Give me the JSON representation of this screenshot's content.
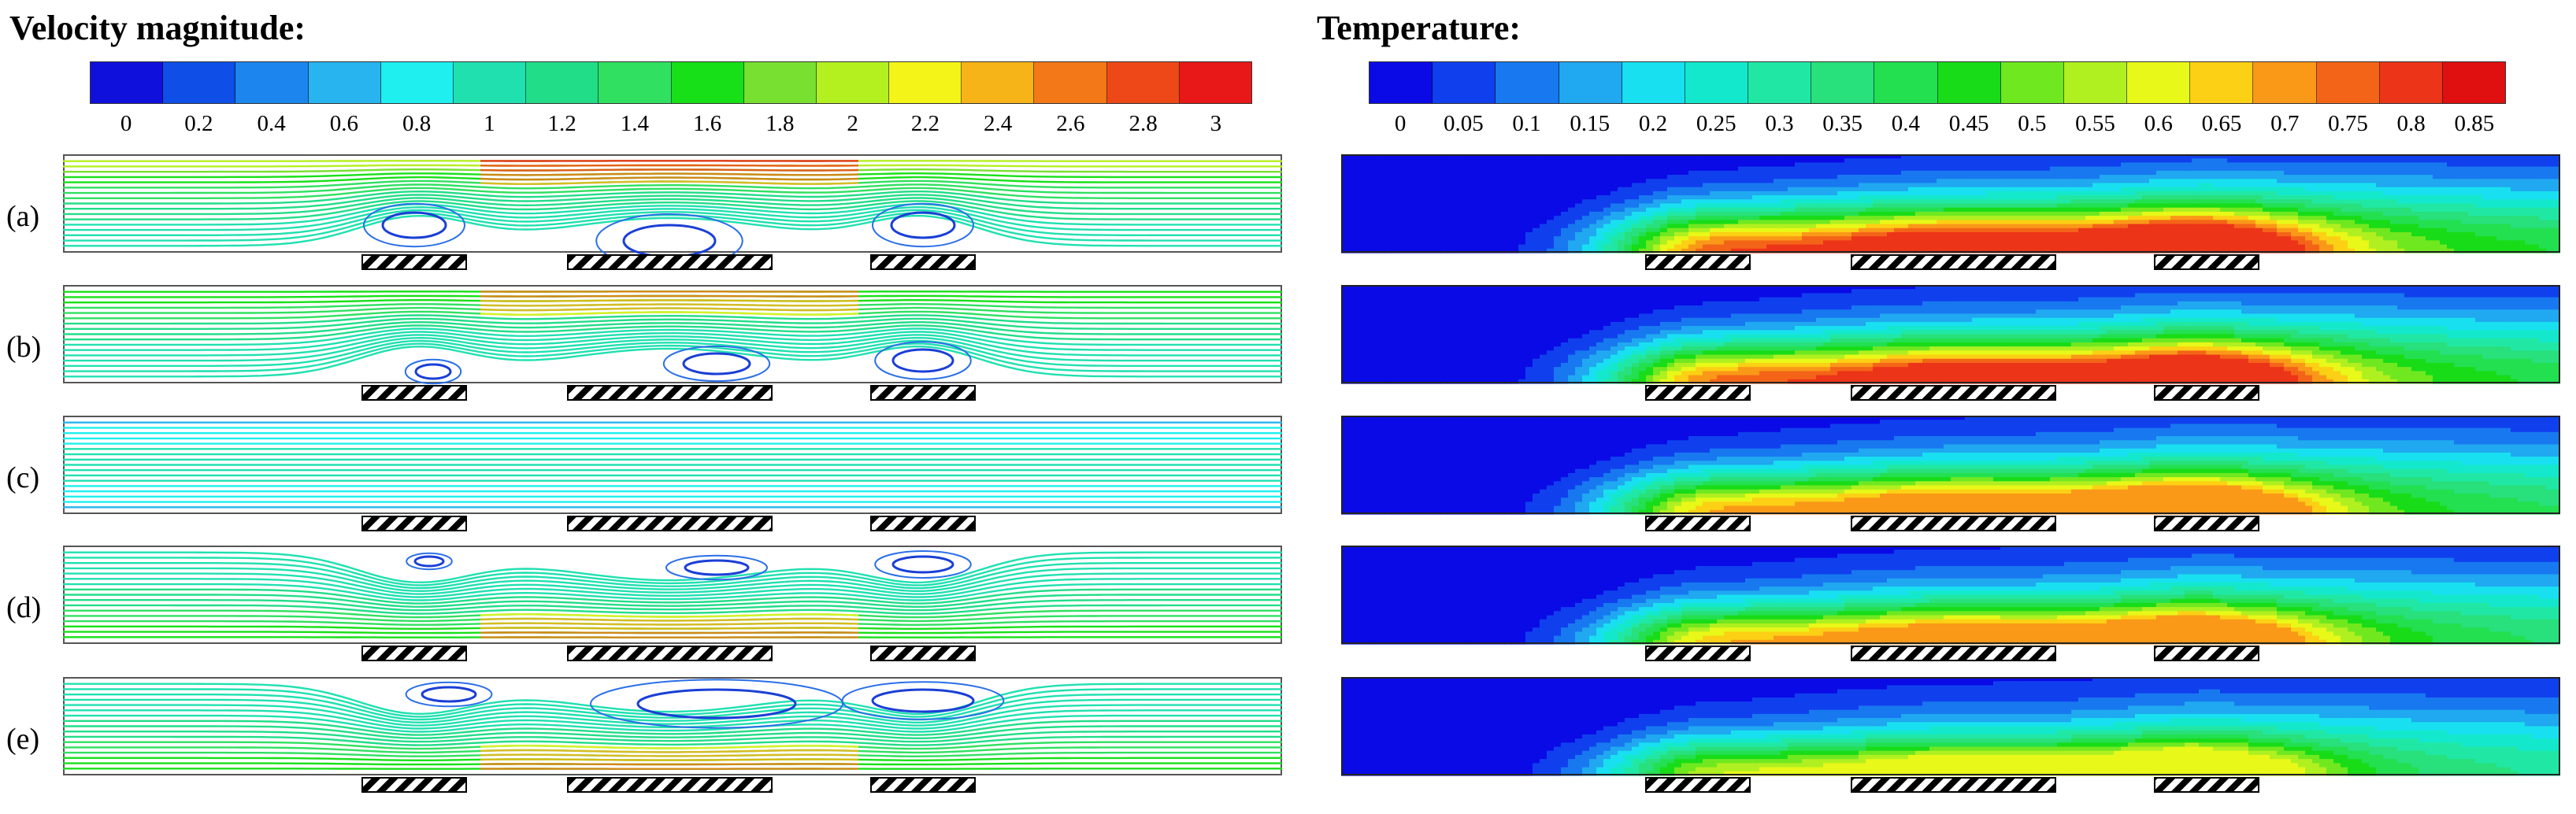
{
  "titles": {
    "velocity": "Velocity magnitude:",
    "temperature": "Temperature:"
  },
  "velocity_colorbar": {
    "ticks": [
      "0",
      "0.2",
      "0.4",
      "0.6",
      "0.8",
      "1",
      "1.2",
      "1.4",
      "1.6",
      "1.8",
      "2",
      "2.2",
      "2.4",
      "2.6",
      "2.8",
      "3"
    ],
    "colors": [
      "#1010dc",
      "#0f4fe8",
      "#1c86ee",
      "#27b4ef",
      "#1fefef",
      "#20e0b0",
      "#22dd88",
      "#30e060",
      "#18e018",
      "#78e030",
      "#b4f020",
      "#f4f418",
      "#f7b418",
      "#f27818",
      "#ee4818",
      "#e81818"
    ]
  },
  "temperature_colorbar": {
    "ticks": [
      "0",
      "0.05",
      "0.1",
      "0.15",
      "0.2",
      "0.25",
      "0.3",
      "0.35",
      "0.4",
      "0.45",
      "0.5",
      "0.55",
      "0.6",
      "0.65",
      "0.7",
      "0.75",
      "0.8",
      "0.85"
    ],
    "colors": [
      "#0a0ae6",
      "#1040ee",
      "#1878f0",
      "#20a8f0",
      "#18e0f0",
      "#14e8cc",
      "#20e8a4",
      "#28e07c",
      "#22e050",
      "#18dc18",
      "#70e820",
      "#b0f020",
      "#e8f818",
      "#fcd014",
      "#fa9818",
      "#f46418",
      "#ec3418",
      "#e01010"
    ]
  },
  "rows": [
    {
      "label": "(a)",
      "vortex_side": "bottom",
      "hot_max": 0.82
    },
    {
      "label": "(b)",
      "vortex_side": "bottom",
      "hot_max": 0.8
    },
    {
      "label": "(c)",
      "vortex_side": "none",
      "hot_max": 0.74
    },
    {
      "label": "(d)",
      "vortex_side": "top",
      "hot_max": 0.72
    },
    {
      "label": "(e)",
      "vortex_side": "top",
      "hot_max": 0.62
    }
  ]
}
